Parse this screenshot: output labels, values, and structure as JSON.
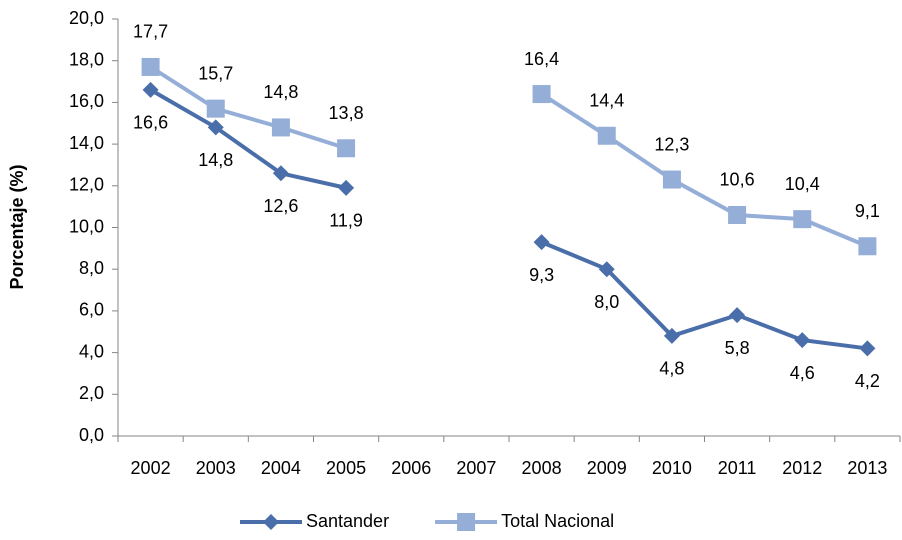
{
  "chart_data": {
    "type": "line",
    "y_label": "Porcentaje (%)",
    "categories": [
      "2002",
      "2003",
      "2004",
      "2005",
      "2006",
      "2007",
      "2008",
      "2009",
      "2010",
      "2011",
      "2012",
      "2013"
    ],
    "series": [
      {
        "name": "Santander",
        "color": "#4a6ea9",
        "marker": "diamond",
        "values": [
          16.6,
          14.8,
          12.6,
          11.9,
          null,
          null,
          9.3,
          8.0,
          4.8,
          5.8,
          4.6,
          4.2
        ],
        "value_labels": [
          "16,6",
          "14,8",
          "12,6",
          "11,9",
          null,
          null,
          "9,3",
          "8,0",
          "4,8",
          "5,8",
          "4,6",
          "4,2"
        ]
      },
      {
        "name": "Total Nacional",
        "color": "#95aed8",
        "marker": "square",
        "values": [
          17.7,
          15.7,
          14.8,
          13.8,
          null,
          null,
          16.4,
          14.4,
          12.3,
          10.6,
          10.4,
          9.1
        ],
        "value_labels": [
          "17,7",
          "15,7",
          "14,8",
          "13,8",
          null,
          null,
          "16,4",
          "14,4",
          "12,3",
          "10,6",
          "10,4",
          "9,1"
        ]
      }
    ],
    "ylim": [
      0,
      20
    ],
    "yticks": [
      {
        "value": 0,
        "label": "0,0"
      },
      {
        "value": 2,
        "label": "2,0"
      },
      {
        "value": 4,
        "label": "4,0"
      },
      {
        "value": 6,
        "label": "6,0"
      },
      {
        "value": 8,
        "label": "8,0"
      },
      {
        "value": 10,
        "label": "10,0"
      },
      {
        "value": 12,
        "label": "12,0"
      },
      {
        "value": 14,
        "label": "14,0"
      },
      {
        "value": 16,
        "label": "16,0"
      },
      {
        "value": 18,
        "label": "18,0"
      },
      {
        "value": 20,
        "label": "20,0"
      }
    ],
    "grid": false,
    "legend": "bottom"
  }
}
